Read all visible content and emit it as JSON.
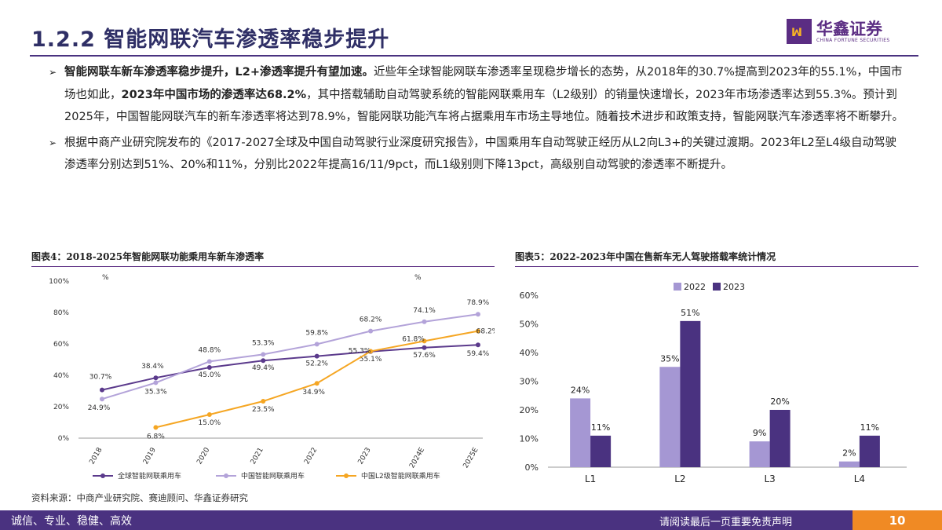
{
  "header": {
    "title": "1.2.2  智能网联汽车渗透率稳步提升",
    "logo_cn": "华鑫证券",
    "logo_en": "CHINA FORTUNE SECURITIES"
  },
  "bullets": [
    {
      "b1": "智能网联车新车渗透率稳步提升，L2+渗透率提升有望加速。",
      "t1": "近些年全球智能网联车渗透率呈现稳步增长的态势，从2018年的30.7%提高到2023年的55.1%，中国市场也如此，",
      "b2": "2023年中国市场的渗透率达68.2%",
      "t2": "，其中搭载辅助自动驾驶系统的智能网联乘用车（L2级别）的销量快速增长，2023年市场渗透率达到55.3%。预计到2025年，中国智能网联汽车的新车渗透率将达到78.9%，智能网联功能汽车将占据乘用车市场主导地位。随着技术进步和政策支持，智能网联汽车渗透率将不断攀升。"
    },
    {
      "t1": "根据中商产业研究院发布的《2017-2027全球及中国自动驾驶行业深度研究报告》，中国乘用车自动驾驶正经历从L2向L3+的关键过渡期。2023年L2至L4级自动驾驶渗透率分别达到51%、20%和11%，分别比2022年提高16/11/9pct，而L1级别则下降13pct，高级别自动驾驶的渗透率不断提升。"
    }
  ],
  "figure4": {
    "title": "图表4：2018-2025年智能网联功能乘用车新车渗透率",
    "unit_left": "%",
    "unit_right": "%"
  },
  "figure5": {
    "title": "图表5：2022-2023年中国在售新车无人驾驶搭载率统计情况"
  },
  "source": "资料来源：中商产业研究院、赛迪顾问、华鑫证券研究",
  "footer": {
    "left": "诚信、专业、稳健、高效",
    "right": "请阅读最后一页重要免责声明",
    "page": "10"
  },
  "chart_data": [
    {
      "type": "line",
      "title": "图表4：2018-2025年智能网联功能乘用车新车渗透率",
      "categories": [
        "2018",
        "2019",
        "2020",
        "2021",
        "2022",
        "2023",
        "2024E",
        "2025E"
      ],
      "ylim": [
        0,
        100
      ],
      "yticks": [
        "0%",
        "20%",
        "40%",
        "60%",
        "80%",
        "100%"
      ],
      "series": [
        {
          "name": "全球智能网联乘用车",
          "color": "#5b3a8c",
          "values": [
            30.7,
            38.4,
            45.0,
            49.4,
            52.2,
            55.1,
            57.6,
            59.4
          ],
          "labels": [
            "30.7%",
            "38.4%",
            "45.0%",
            "49.4%",
            "52.2%",
            "55.1%",
            "57.6%",
            "59.4%"
          ]
        },
        {
          "name": "中国智能网联乘用车",
          "color": "#b3a3d9",
          "values": [
            24.9,
            35.3,
            48.8,
            53.3,
            59.8,
            68.2,
            74.1,
            78.9
          ],
          "labels": [
            "24.9%",
            "35.3%",
            "48.8%",
            "53.3%",
            "59.8%",
            "68.2%",
            "74.1%",
            "78.9%"
          ]
        },
        {
          "name": "中国L2级智能网联乘用车",
          "color": "#f5a623",
          "values": [
            null,
            6.8,
            15.0,
            23.5,
            34.9,
            55.3,
            61.8,
            68.2
          ],
          "labels": [
            "",
            "6.8%",
            "15.0%",
            "23.5%",
            "34.9%",
            "55.3%",
            "61.8%",
            "68.2%"
          ]
        }
      ],
      "legend": "bottom"
    },
    {
      "type": "bar",
      "title": "图表5：2022-2023年中国在售新车无人驾驶搭载率统计情况",
      "categories": [
        "L1",
        "L2",
        "L3",
        "L4"
      ],
      "ylim": [
        0,
        60
      ],
      "yticks": [
        "0%",
        "10%",
        "20%",
        "30%",
        "40%",
        "50%",
        "60%"
      ],
      "series": [
        {
          "name": "2022",
          "color": "#a597d3",
          "values": [
            24,
            35,
            9,
            2
          ],
          "labels": [
            "24%",
            "35%",
            "9%",
            "2%"
          ]
        },
        {
          "name": "2023",
          "color": "#4a3280",
          "values": [
            11,
            51,
            20,
            11
          ],
          "labels": [
            "11%",
            "51%",
            "20%",
            "11%"
          ]
        }
      ],
      "legend": "top-left"
    }
  ]
}
